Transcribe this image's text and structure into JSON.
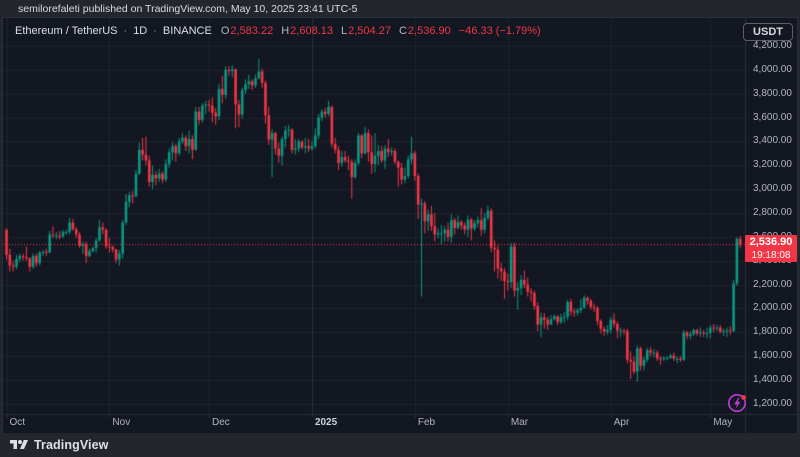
{
  "top_bar": {
    "attribution": "semilorefaleti published on TradingView.com, May 10, 2025 23:41 UTC-5"
  },
  "header": {
    "symbol": "Ethereum / TetherUS",
    "separator": "·",
    "interval": "1D",
    "exchange": "BINANCE",
    "ohlc": {
      "o_label": "O",
      "o": "2,583.22",
      "h_label": "H",
      "h": "2,608.13",
      "l_label": "L",
      "l": "2,504.27",
      "c_label": "C",
      "c": "2,536.90",
      "change": "−46.33 (−1.79%)"
    }
  },
  "price_scale": {
    "currency_button": "USDT",
    "last_price_label": "2,536.90",
    "countdown": "19:18:08"
  },
  "footer": {
    "brand": "TradingView"
  },
  "colors": {
    "background": "#131722",
    "panel": "#23262c",
    "border": "#2a2e39",
    "grid": "rgba(240,243,250,0.055)",
    "grid_strong": "rgba(240,243,250,0.10)",
    "text": "#d1d4dc",
    "muted": "#b2b5be",
    "up": "#089981",
    "down": "#f23645",
    "boost": "#bb3fd9"
  },
  "chart_data": {
    "type": "candlestick",
    "title": "Ethereum / TetherUS",
    "symbol": "ETHUSDT",
    "exchange": "BINANCE",
    "timeframe": "1D",
    "legend_position": "top-left",
    "grid": true,
    "y_axis": {
      "min": 1200,
      "max": 4200,
      "tick_step": 200,
      "tick_values": [
        4200,
        4000,
        3800,
        3600,
        3400,
        3200,
        3000,
        2800,
        2600,
        2400,
        2200,
        2000,
        1800,
        1600,
        1400,
        1200
      ]
    },
    "x_axis": {
      "labels": [
        {
          "text": "Oct",
          "index": 0,
          "strong": false
        },
        {
          "text": "Nov",
          "index": 31,
          "strong": false
        },
        {
          "text": "Dec",
          "index": 61,
          "strong": false
        },
        {
          "text": "2025",
          "index": 92,
          "strong": true
        },
        {
          "text": "Feb",
          "index": 123,
          "strong": false
        },
        {
          "text": "Mar",
          "index": 151,
          "strong": false
        },
        {
          "text": "Apr",
          "index": 182,
          "strong": false
        },
        {
          "text": "May",
          "index": 212,
          "strong": false
        }
      ]
    },
    "last": {
      "open": 2583.22,
      "high": 2608.13,
      "low": 2504.27,
      "price": 2536.9,
      "change": -46.33,
      "change_pct": -1.79,
      "countdown": "19:18:08"
    },
    "first_open": 2660,
    "encoding_note": "candles are [high, low, close]; open of each candle = previous candle close (first_open for candle 0)",
    "candles": [
      [
        2670,
        2410,
        2450
      ],
      [
        2500,
        2310,
        2360
      ],
      [
        2400,
        2310,
        2350
      ],
      [
        2450,
        2330,
        2415
      ],
      [
        2460,
        2390,
        2440
      ],
      [
        2460,
        2400,
        2430
      ],
      [
        2520,
        2400,
        2420
      ],
      [
        2430,
        2310,
        2350
      ],
      [
        2460,
        2330,
        2440
      ],
      [
        2460,
        2350,
        2380
      ],
      [
        2480,
        2360,
        2470
      ],
      [
        2490,
        2440,
        2475
      ],
      [
        2500,
        2440,
        2470
      ],
      [
        2650,
        2460,
        2620
      ],
      [
        2690,
        2590,
        2610
      ],
      [
        2640,
        2580,
        2610
      ],
      [
        2650,
        2580,
        2605
      ],
      [
        2660,
        2590,
        2640
      ],
      [
        2660,
        2620,
        2640
      ],
      [
        2760,
        2620,
        2720
      ],
      [
        2750,
        2650,
        2665
      ],
      [
        2680,
        2590,
        2620
      ],
      [
        2640,
        2510,
        2525
      ],
      [
        2560,
        2460,
        2535
      ],
      [
        2560,
        2380,
        2440
      ],
      [
        2500,
        2430,
        2480
      ],
      [
        2520,
        2470,
        2505
      ],
      [
        2590,
        2470,
        2570
      ],
      [
        2740,
        2560,
        2680
      ],
      [
        2720,
        2620,
        2660
      ],
      [
        2670,
        2500,
        2520
      ],
      [
        2590,
        2470,
        2515
      ],
      [
        2530,
        2470,
        2495
      ],
      [
        2500,
        2380,
        2410
      ],
      [
        2490,
        2360,
        2460
      ],
      [
        2740,
        2420,
        2720
      ],
      [
        2960,
        2700,
        2895
      ],
      [
        2980,
        2850,
        2950
      ],
      [
        2985,
        2880,
        2940
      ],
      [
        3160,
        2930,
        3130
      ],
      [
        3390,
        3120,
        3330
      ],
      [
        3430,
        3240,
        3290
      ],
      [
        3440,
        3200,
        3240
      ],
      [
        3280,
        3020,
        3060
      ],
      [
        3200,
        3000,
        3120
      ],
      [
        3150,
        3030,
        3090
      ],
      [
        3170,
        3060,
        3130
      ],
      [
        3150,
        3050,
        3080
      ],
      [
        3250,
        3060,
        3210
      ],
      [
        3340,
        3180,
        3310
      ],
      [
        3390,
        3240,
        3360
      ],
      [
        3380,
        3230,
        3300
      ],
      [
        3430,
        3280,
        3400
      ],
      [
        3470,
        3380,
        3430
      ],
      [
        3450,
        3320,
        3360
      ],
      [
        3490,
        3300,
        3420
      ],
      [
        3450,
        3250,
        3330
      ],
      [
        3690,
        3320,
        3650
      ],
      [
        3690,
        3540,
        3580
      ],
      [
        3720,
        3560,
        3700
      ],
      [
        3740,
        3630,
        3710
      ],
      [
        3750,
        3650,
        3700
      ],
      [
        3770,
        3560,
        3640
      ],
      [
        3680,
        3540,
        3610
      ],
      [
        3880,
        3580,
        3840
      ],
      [
        3950,
        3720,
        3790
      ],
      [
        4030,
        3760,
        4000
      ],
      [
        4030,
        3950,
        3990
      ],
      [
        4040,
        3940,
        4005
      ],
      [
        4010,
        3510,
        3710
      ],
      [
        3750,
        3520,
        3625
      ],
      [
        3850,
        3590,
        3830
      ],
      [
        3920,
        3800,
        3880
      ],
      [
        3960,
        3840,
        3905
      ],
      [
        3920,
        3830,
        3870
      ],
      [
        3960,
        3850,
        3930
      ],
      [
        4090,
        3920,
        3985
      ],
      [
        4010,
        3850,
        3890
      ],
      [
        3910,
        3550,
        3620
      ],
      [
        3690,
        3370,
        3415
      ],
      [
        3500,
        3100,
        3470
      ],
      [
        3480,
        3290,
        3340
      ],
      [
        3390,
        3220,
        3280
      ],
      [
        3440,
        3200,
        3420
      ],
      [
        3530,
        3350,
        3490
      ],
      [
        3540,
        3440,
        3500
      ],
      [
        3510,
        3300,
        3330
      ],
      [
        3420,
        3290,
        3340
      ],
      [
        3420,
        3310,
        3400
      ],
      [
        3410,
        3330,
        3350
      ],
      [
        3430,
        3300,
        3360
      ],
      [
        3420,
        3310,
        3340
      ],
      [
        3400,
        3320,
        3360
      ],
      [
        3510,
        3340,
        3450
      ],
      [
        3630,
        3420,
        3600
      ],
      [
        3670,
        3570,
        3650
      ],
      [
        3680,
        3600,
        3630
      ],
      [
        3740,
        3610,
        3690
      ],
      [
        3700,
        3350,
        3380
      ],
      [
        3430,
        3300,
        3330
      ],
      [
        3360,
        3160,
        3220
      ],
      [
        3320,
        3190,
        3270
      ],
      [
        3320,
        3220,
        3240
      ],
      [
        3280,
        3160,
        3230
      ],
      [
        3250,
        2920,
        3100
      ],
      [
        3250,
        3090,
        3220
      ],
      [
        3470,
        3200,
        3450
      ],
      [
        3460,
        3260,
        3300
      ],
      [
        3520,
        3290,
        3470
      ],
      [
        3500,
        3230,
        3310
      ],
      [
        3450,
        3130,
        3210
      ],
      [
        3470,
        3140,
        3280
      ],
      [
        3370,
        3200,
        3320
      ],
      [
        3360,
        3220,
        3240
      ],
      [
        3370,
        3170,
        3340
      ],
      [
        3420,
        3270,
        3310
      ],
      [
        3350,
        3280,
        3320
      ],
      [
        3340,
        3210,
        3230
      ],
      [
        3240,
        3020,
        3180
      ],
      [
        3220,
        3040,
        3080
      ],
      [
        3180,
        3050,
        3110
      ],
      [
        3280,
        3090,
        3250
      ],
      [
        3440,
        3210,
        3300
      ],
      [
        3320,
        3070,
        3110
      ],
      [
        3130,
        2750,
        2870
      ],
      [
        2920,
        2100,
        2880
      ],
      [
        2900,
        2630,
        2730
      ],
      [
        2830,
        2650,
        2790
      ],
      [
        2860,
        2650,
        2690
      ],
      [
        2800,
        2560,
        2620
      ],
      [
        2670,
        2590,
        2630
      ],
      [
        2700,
        2540,
        2630
      ],
      [
        2690,
        2560,
        2660
      ],
      [
        2720,
        2560,
        2600
      ],
      [
        2790,
        2550,
        2740
      ],
      [
        2760,
        2620,
        2675
      ],
      [
        2780,
        2660,
        2725
      ],
      [
        2740,
        2660,
        2695
      ],
      [
        2720,
        2620,
        2660
      ],
      [
        2780,
        2600,
        2745
      ],
      [
        2760,
        2570,
        2670
      ],
      [
        2740,
        2650,
        2715
      ],
      [
        2770,
        2680,
        2740
      ],
      [
        2840,
        2610,
        2660
      ],
      [
        2800,
        2630,
        2760
      ],
      [
        2860,
        2740,
        2820
      ],
      [
        2840,
        2470,
        2510
      ],
      [
        2570,
        2310,
        2495
      ],
      [
        2530,
        2250,
        2335
      ],
      [
        2380,
        2230,
        2310
      ],
      [
        2340,
        2080,
        2230
      ],
      [
        2290,
        2150,
        2220
      ],
      [
        2550,
        2170,
        2520
      ],
      [
        2550,
        2100,
        2150
      ],
      [
        2220,
        1990,
        2170
      ],
      [
        2280,
        2110,
        2240
      ],
      [
        2320,
        2170,
        2200
      ],
      [
        2260,
        2100,
        2140
      ],
      [
        2170,
        2060,
        2130
      ],
      [
        2150,
        1990,
        2020
      ],
      [
        2050,
        1810,
        1865
      ],
      [
        1965,
        1760,
        1925
      ],
      [
        1960,
        1830,
        1905
      ],
      [
        1930,
        1820,
        1865
      ],
      [
        1945,
        1860,
        1910
      ],
      [
        1950,
        1900,
        1935
      ],
      [
        1940,
        1860,
        1885
      ],
      [
        1955,
        1870,
        1925
      ],
      [
        1970,
        1880,
        1930
      ],
      [
        2070,
        1900,
        2055
      ],
      [
        2080,
        1940,
        1975
      ],
      [
        2000,
        1930,
        1965
      ],
      [
        2000,
        1940,
        1985
      ],
      [
        2080,
        1960,
        2005
      ],
      [
        2110,
        2000,
        2090
      ],
      [
        2100,
        2030,
        2065
      ],
      [
        2080,
        1990,
        2010
      ],
      [
        2040,
        1970,
        2005
      ],
      [
        2020,
        1860,
        1895
      ],
      [
        1910,
        1790,
        1830
      ],
      [
        1850,
        1770,
        1805
      ],
      [
        1860,
        1780,
        1820
      ],
      [
        1930,
        1790,
        1905
      ],
      [
        1960,
        1840,
        1870
      ],
      [
        1890,
        1750,
        1815
      ],
      [
        1840,
        1760,
        1815
      ],
      [
        1830,
        1780,
        1810
      ],
      [
        1830,
        1540,
        1570
      ],
      [
        1640,
        1410,
        1555
      ],
      [
        1600,
        1450,
        1470
      ],
      [
        1690,
        1385,
        1665
      ],
      [
        1680,
        1480,
        1520
      ],
      [
        1600,
        1480,
        1570
      ],
      [
        1670,
        1550,
        1650
      ],
      [
        1680,
        1600,
        1630
      ],
      [
        1660,
        1590,
        1630
      ],
      [
        1650,
        1560,
        1580
      ],
      [
        1600,
        1530,
        1575
      ],
      [
        1600,
        1560,
        1585
      ],
      [
        1600,
        1570,
        1585
      ],
      [
        1620,
        1580,
        1605
      ],
      [
        1630,
        1560,
        1580
      ],
      [
        1600,
        1540,
        1580
      ],
      [
        1600,
        1550,
        1570
      ],
      [
        1820,
        1560,
        1800
      ],
      [
        1810,
        1740,
        1770
      ],
      [
        1810,
        1740,
        1785
      ],
      [
        1830,
        1770,
        1820
      ],
      [
        1830,
        1770,
        1790
      ],
      [
        1840,
        1760,
        1800
      ],
      [
        1820,
        1760,
        1795
      ],
      [
        1840,
        1750,
        1795
      ],
      [
        1860,
        1750,
        1840
      ],
      [
        1870,
        1800,
        1835
      ],
      [
        1860,
        1810,
        1840
      ],
      [
        1860,
        1790,
        1805
      ],
      [
        1830,
        1770,
        1810
      ],
      [
        1840,
        1760,
        1815
      ],
      [
        1850,
        1780,
        1810
      ],
      [
        2240,
        1800,
        2210
      ],
      [
        2600,
        2190,
        2583
      ],
      [
        2608,
        2504,
        2536.9
      ]
    ],
    "colors": {
      "up": "#089981",
      "down": "#f23645"
    }
  }
}
